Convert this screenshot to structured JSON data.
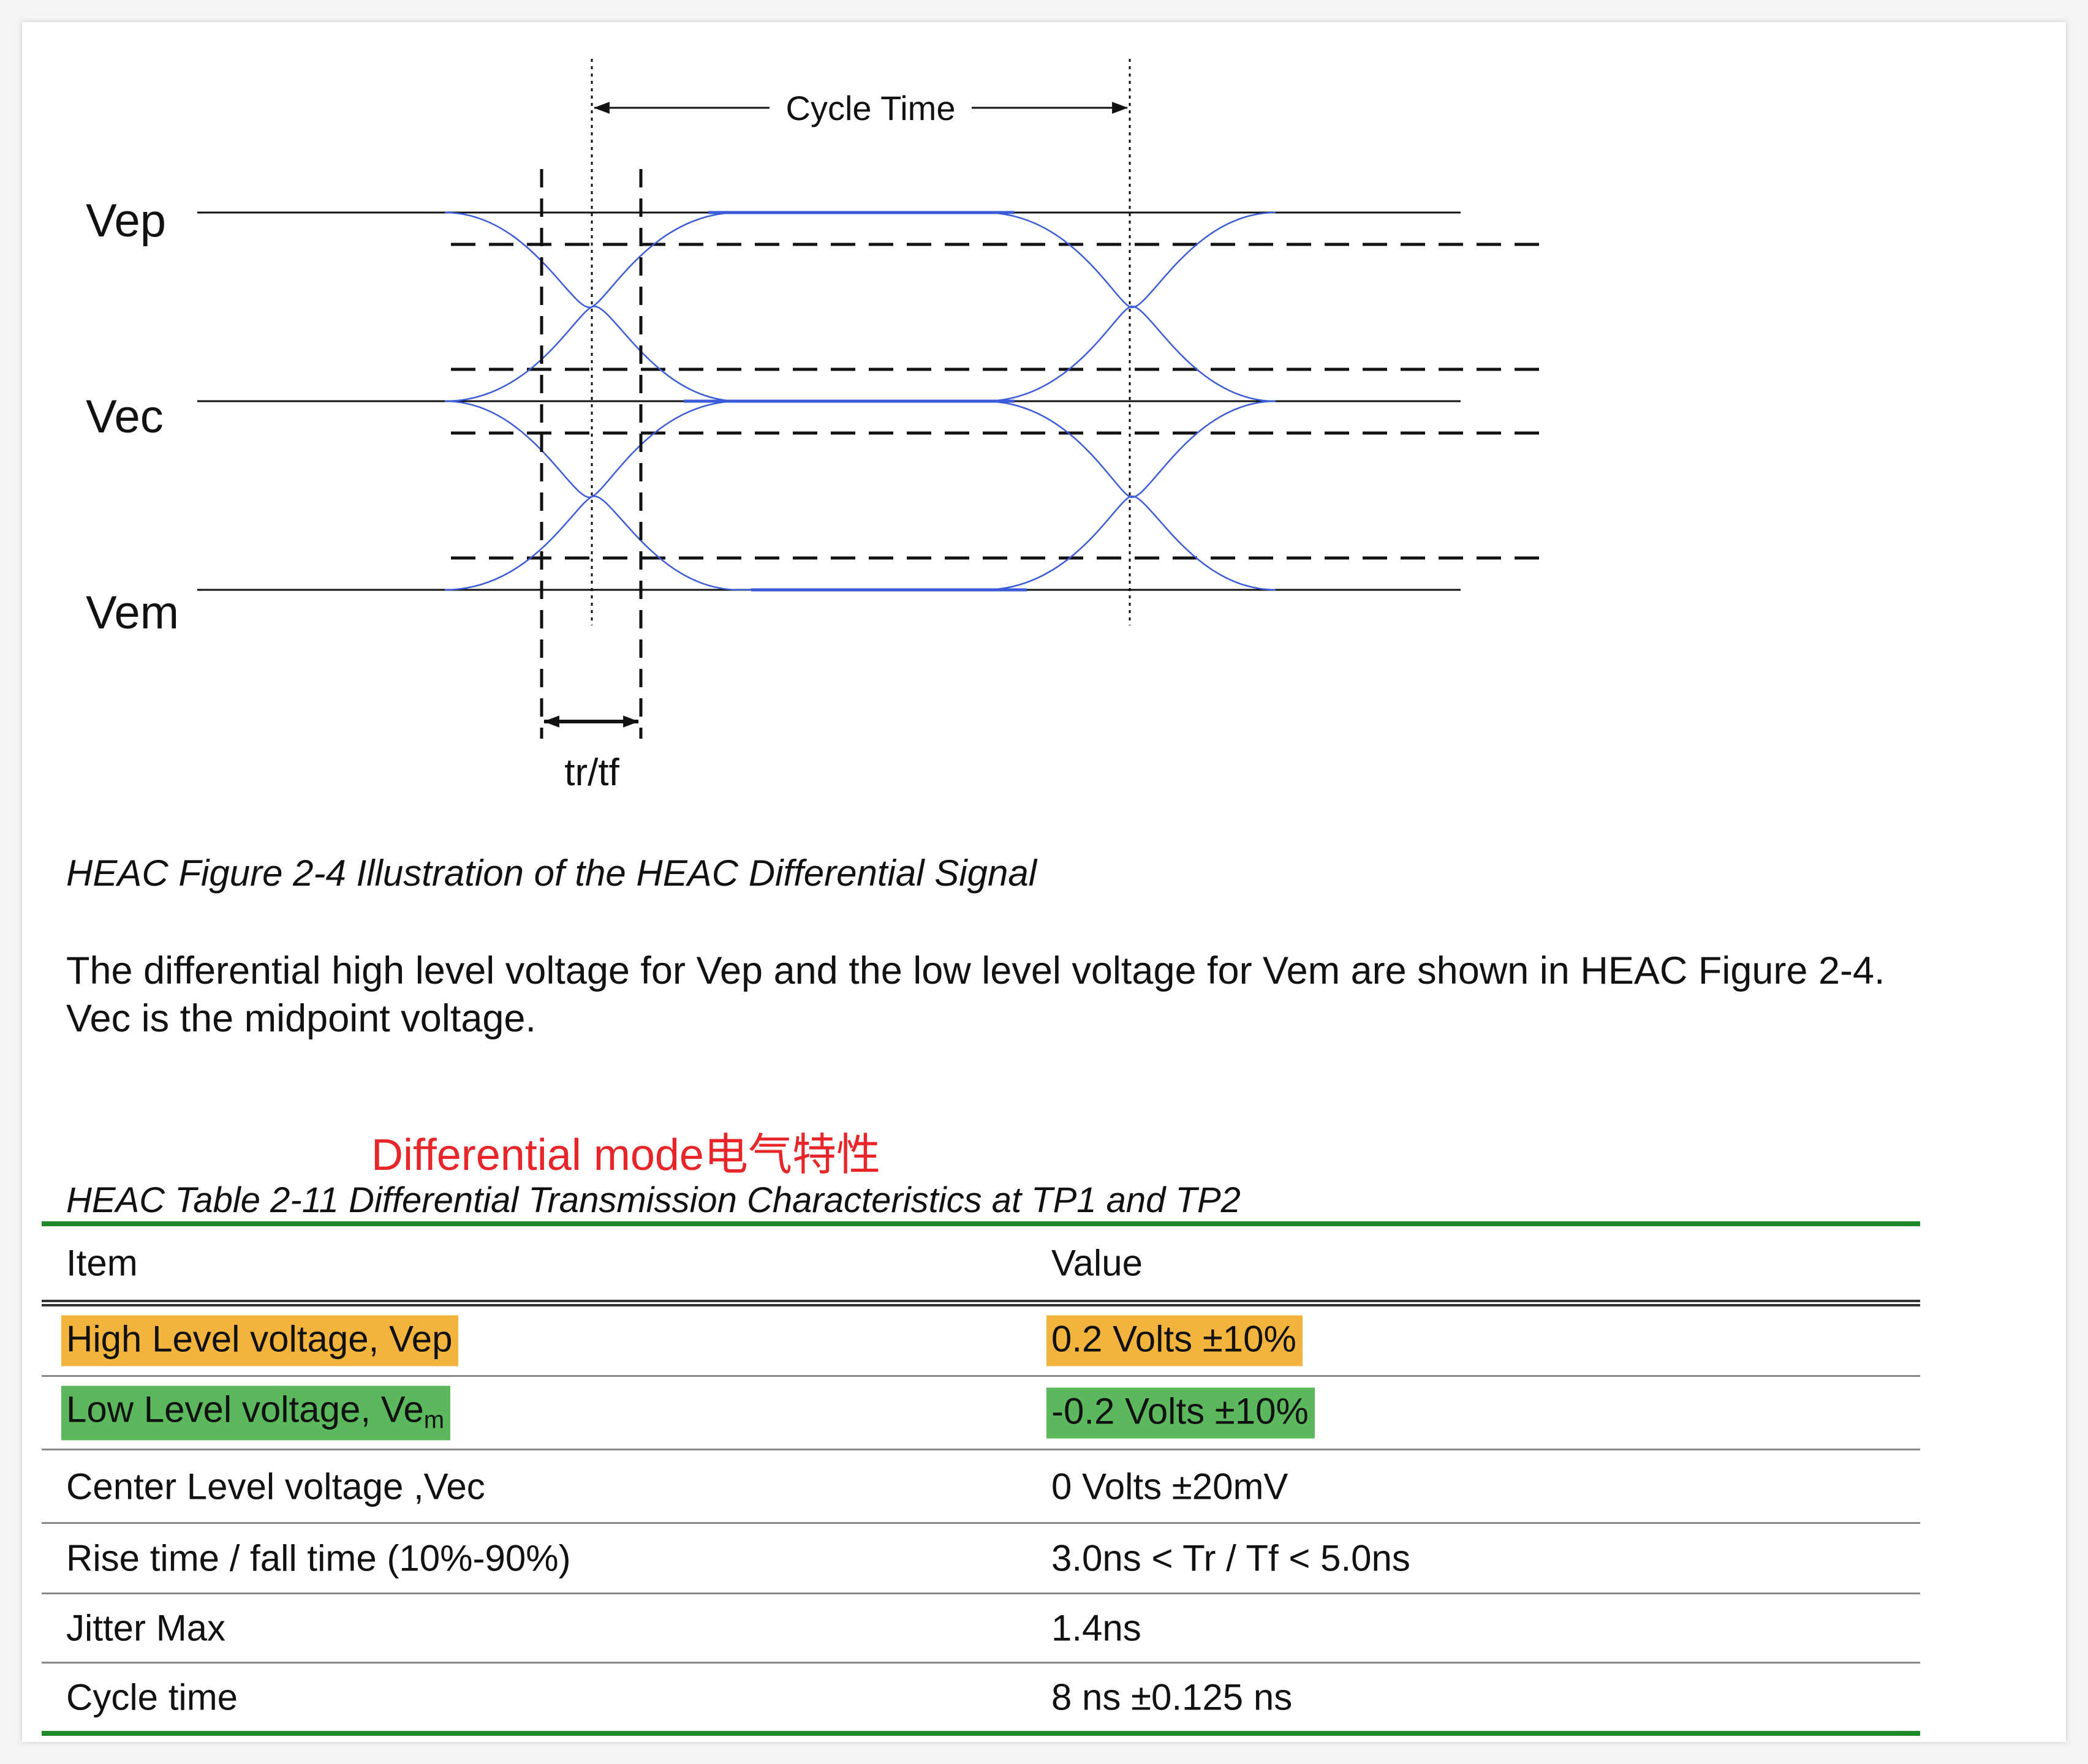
{
  "figure": {
    "cycle_time_label": "Cycle Time",
    "trtf_label": "tr/tf",
    "levels": {
      "vep": "Vep",
      "vec": "Vec",
      "vem": "Vem"
    },
    "colors": {
      "signal": "#3b5bd9",
      "ink": "#111111"
    }
  },
  "caption": "HEAC Figure 2-4 Illustration of the HEAC Differential Signal",
  "paragraph": {
    "line1": "The differential high level voltage for Vep and the low level voltage for Vem are shown in HEAC Figure 2-4.",
    "line2": "Vec is the midpoint voltage."
  },
  "annotation": "Differential mode电气特性",
  "table": {
    "caption": "HEAC Table 2-11 Differential Transmission Characteristics at TP1 and TP2",
    "headers": {
      "item": "Item",
      "value": "Value"
    },
    "rows": [
      {
        "item": "High Level voltage, Vep",
        "value": "0.2 Volts ±10%"
      },
      {
        "item_main": "Low Level voltage, Ve",
        "item_sub": "m",
        "value": "-0.2 Volts ±10%"
      },
      {
        "item": "Center Level voltage ,Vec",
        "value": "0 Volts ±20mV"
      },
      {
        "item": "Rise time / fall time (10%-90%)",
        "value": "3.0ns < Tr / Tf < 5.0ns"
      },
      {
        "item": "Jitter Max",
        "value": "1.4ns"
      },
      {
        "item": "Cycle time",
        "value": "8 ns ±0.125 ns"
      }
    ],
    "highlight_colors": {
      "row1": "#f3b43d",
      "row2": "#5cb85c"
    },
    "rule_color": "#1e8a2a"
  }
}
